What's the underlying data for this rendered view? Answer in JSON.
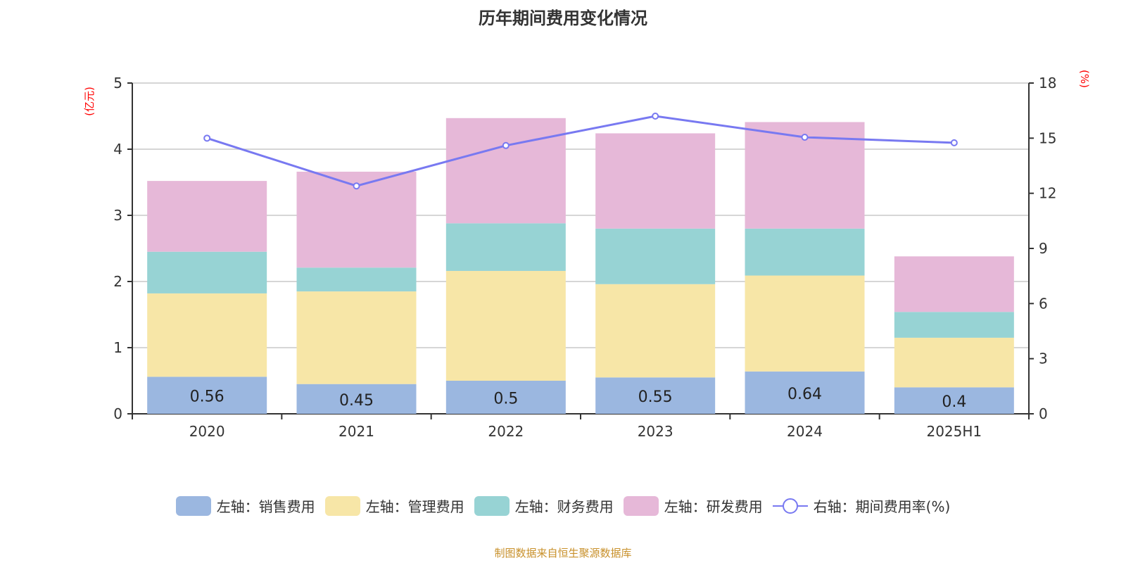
{
  "title": "历年期间费用变化情况",
  "source": "制图数据来自恒生聚源数据库",
  "chart_data": {
    "type": "bar",
    "stacked": true,
    "categories": [
      "2020",
      "2021",
      "2022",
      "2023",
      "2024",
      "2025H1"
    ],
    "left_axis": {
      "label": "(亿元)",
      "range": [
        0,
        5
      ],
      "ticks": [
        "0",
        "1",
        "2",
        "3",
        "4",
        "5"
      ]
    },
    "right_axis": {
      "label": "(%)",
      "range": [
        0,
        18
      ],
      "ticks": [
        "0",
        "3",
        "6",
        "9",
        "12",
        "15",
        "18"
      ]
    },
    "grid": true,
    "legend_position": "bottom",
    "series": [
      {
        "name": "左轴：销售费用",
        "color": "#9bb7e0",
        "axis": "left",
        "values": [
          0.56,
          0.45,
          0.5,
          0.55,
          0.64,
          0.4
        ],
        "labels": [
          "0.56",
          "0.45",
          "0.5",
          "0.55",
          "0.64",
          "0.4"
        ]
      },
      {
        "name": "左轴：管理费用",
        "color": "#f7e6a7",
        "axis": "left",
        "values": [
          1.26,
          1.4,
          1.66,
          1.41,
          1.45,
          0.75
        ]
      },
      {
        "name": "左轴：财务费用",
        "color": "#97d3d4",
        "axis": "left",
        "values": [
          0.63,
          0.36,
          0.72,
          0.84,
          0.71,
          0.39
        ]
      },
      {
        "name": "左轴：研发费用",
        "color": "#e6b8d8",
        "axis": "left",
        "values": [
          1.07,
          1.45,
          1.59,
          1.44,
          1.61,
          0.84
        ]
      },
      {
        "name": "右轴：期间费用率(%)",
        "color": "#7879f1",
        "axis": "right",
        "type": "line",
        "values": [
          15.0,
          12.4,
          14.6,
          16.2,
          15.05,
          14.75
        ]
      }
    ]
  }
}
